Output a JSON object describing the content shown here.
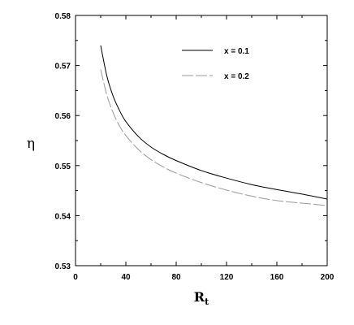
{
  "chart_data": {
    "type": "line",
    "title": "",
    "xlabel": "R",
    "xlabel_subscript": "t",
    "ylabel": "η",
    "xlim": [
      0,
      200
    ],
    "ylim": [
      0.53,
      0.58
    ],
    "xticks": [
      "0",
      "40",
      "80",
      "120",
      "160",
      "200"
    ],
    "yticks": [
      "0.53",
      "0.54",
      "0.55",
      "0.56",
      "0.57",
      "0.58"
    ],
    "grid": false,
    "legend_position": "top-right",
    "series": [
      {
        "name": "x = 0.1",
        "color": "#000000",
        "dash": "solid",
        "x": [
          20,
          25,
          30,
          35,
          40,
          50,
          60,
          70,
          80,
          100,
          120,
          140,
          160,
          180,
          200
        ],
        "y": [
          0.574,
          0.5678,
          0.5638,
          0.561,
          0.5588,
          0.5558,
          0.5537,
          0.5522,
          0.551,
          0.549,
          0.5475,
          0.5462,
          0.5452,
          0.5443,
          0.5433
        ]
      },
      {
        "name": "x = 0.2",
        "color": "#999999",
        "dash": "long-dash",
        "x": [
          20,
          25,
          30,
          35,
          40,
          50,
          60,
          70,
          80,
          100,
          120,
          140,
          160,
          180,
          200
        ],
        "y": [
          0.5692,
          0.564,
          0.5605,
          0.5579,
          0.556,
          0.5532,
          0.5512,
          0.5497,
          0.5485,
          0.5466,
          0.5451,
          0.5439,
          0.543,
          0.5425,
          0.542
        ]
      }
    ]
  }
}
